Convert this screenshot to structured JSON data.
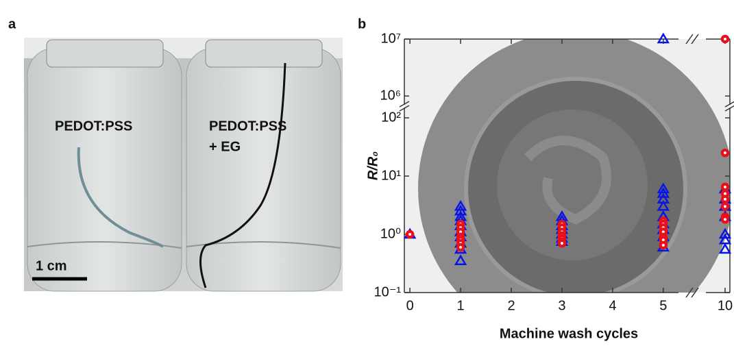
{
  "photo": {
    "panel_label": "a",
    "left_label": "PEDOT:PSS",
    "right_label": [
      "PEDOT:PSS",
      "+ EG"
    ],
    "scale_bar": "1 cm"
  },
  "chart_data": {
    "type": "scatter",
    "panel_label": "b",
    "x_label": "Machine wash cycles",
    "y_label": "R/R₀",
    "log_y": true,
    "x_segments": [
      {
        "xlim": [
          -0.11,
          5.3
        ],
        "xticks": [
          0,
          1,
          2,
          3,
          4,
          5
        ]
      },
      {
        "xlim": [
          9.6,
          10.1
        ],
        "xticks": [
          10
        ]
      }
    ],
    "y_segments": [
      {
        "ylim": [
          0.1,
          150
        ],
        "yticks": [
          {
            "value": 0.1,
            "label": "10⁻¹"
          },
          {
            "value": 1,
            "label": "10⁰"
          },
          {
            "value": 10,
            "label": "10¹"
          },
          {
            "value": 100,
            "label": "10²"
          }
        ]
      },
      {
        "ylim": [
          700000,
          10000000
        ],
        "yticks": [
          {
            "value": 1000000,
            "label": "10⁶"
          },
          {
            "value": 10000000,
            "label": "10⁷"
          }
        ]
      }
    ],
    "series": [
      {
        "color": "#0a14e6",
        "marker": "triangle",
        "x": [
          0,
          1,
          1,
          1,
          1,
          1,
          1,
          1,
          1,
          1,
          1,
          3,
          3,
          3,
          3,
          3,
          3,
          3,
          5,
          5,
          5,
          5,
          5,
          5,
          5,
          5,
          5,
          5,
          10,
          10,
          10,
          10,
          10,
          10,
          10
        ],
        "values": [
          1,
          3,
          2.5,
          2,
          1.7,
          1.4,
          1.1,
          0.9,
          0.7,
          0.55,
          0.35,
          2,
          1.7,
          1.4,
          1.2,
          1,
          0.85,
          0.75,
          10000000,
          6,
          5,
          4,
          3,
          2,
          1.5,
          1.2,
          0.9,
          0.6,
          6,
          4,
          3,
          2,
          1,
          0.8,
          0.55
        ]
      },
      {
        "color": "#e8101a",
        "marker": "circle",
        "x": [
          0,
          1,
          1,
          1,
          1,
          1,
          1,
          1,
          3,
          3,
          3,
          3,
          3,
          3,
          3,
          5,
          5,
          5,
          5,
          5,
          5,
          5,
          10,
          10,
          10,
          10,
          10,
          10,
          10,
          10
        ],
        "values": [
          1,
          1.5,
          1.3,
          1.1,
          0.9,
          0.8,
          0.7,
          0.6,
          1.5,
          1.3,
          1.1,
          0.95,
          0.85,
          0.75,
          0.7,
          1.7,
          1.5,
          1.3,
          1.1,
          0.9,
          0.8,
          0.65,
          10000000,
          25,
          6.5,
          5,
          4,
          3,
          2,
          1.8
        ]
      }
    ]
  }
}
